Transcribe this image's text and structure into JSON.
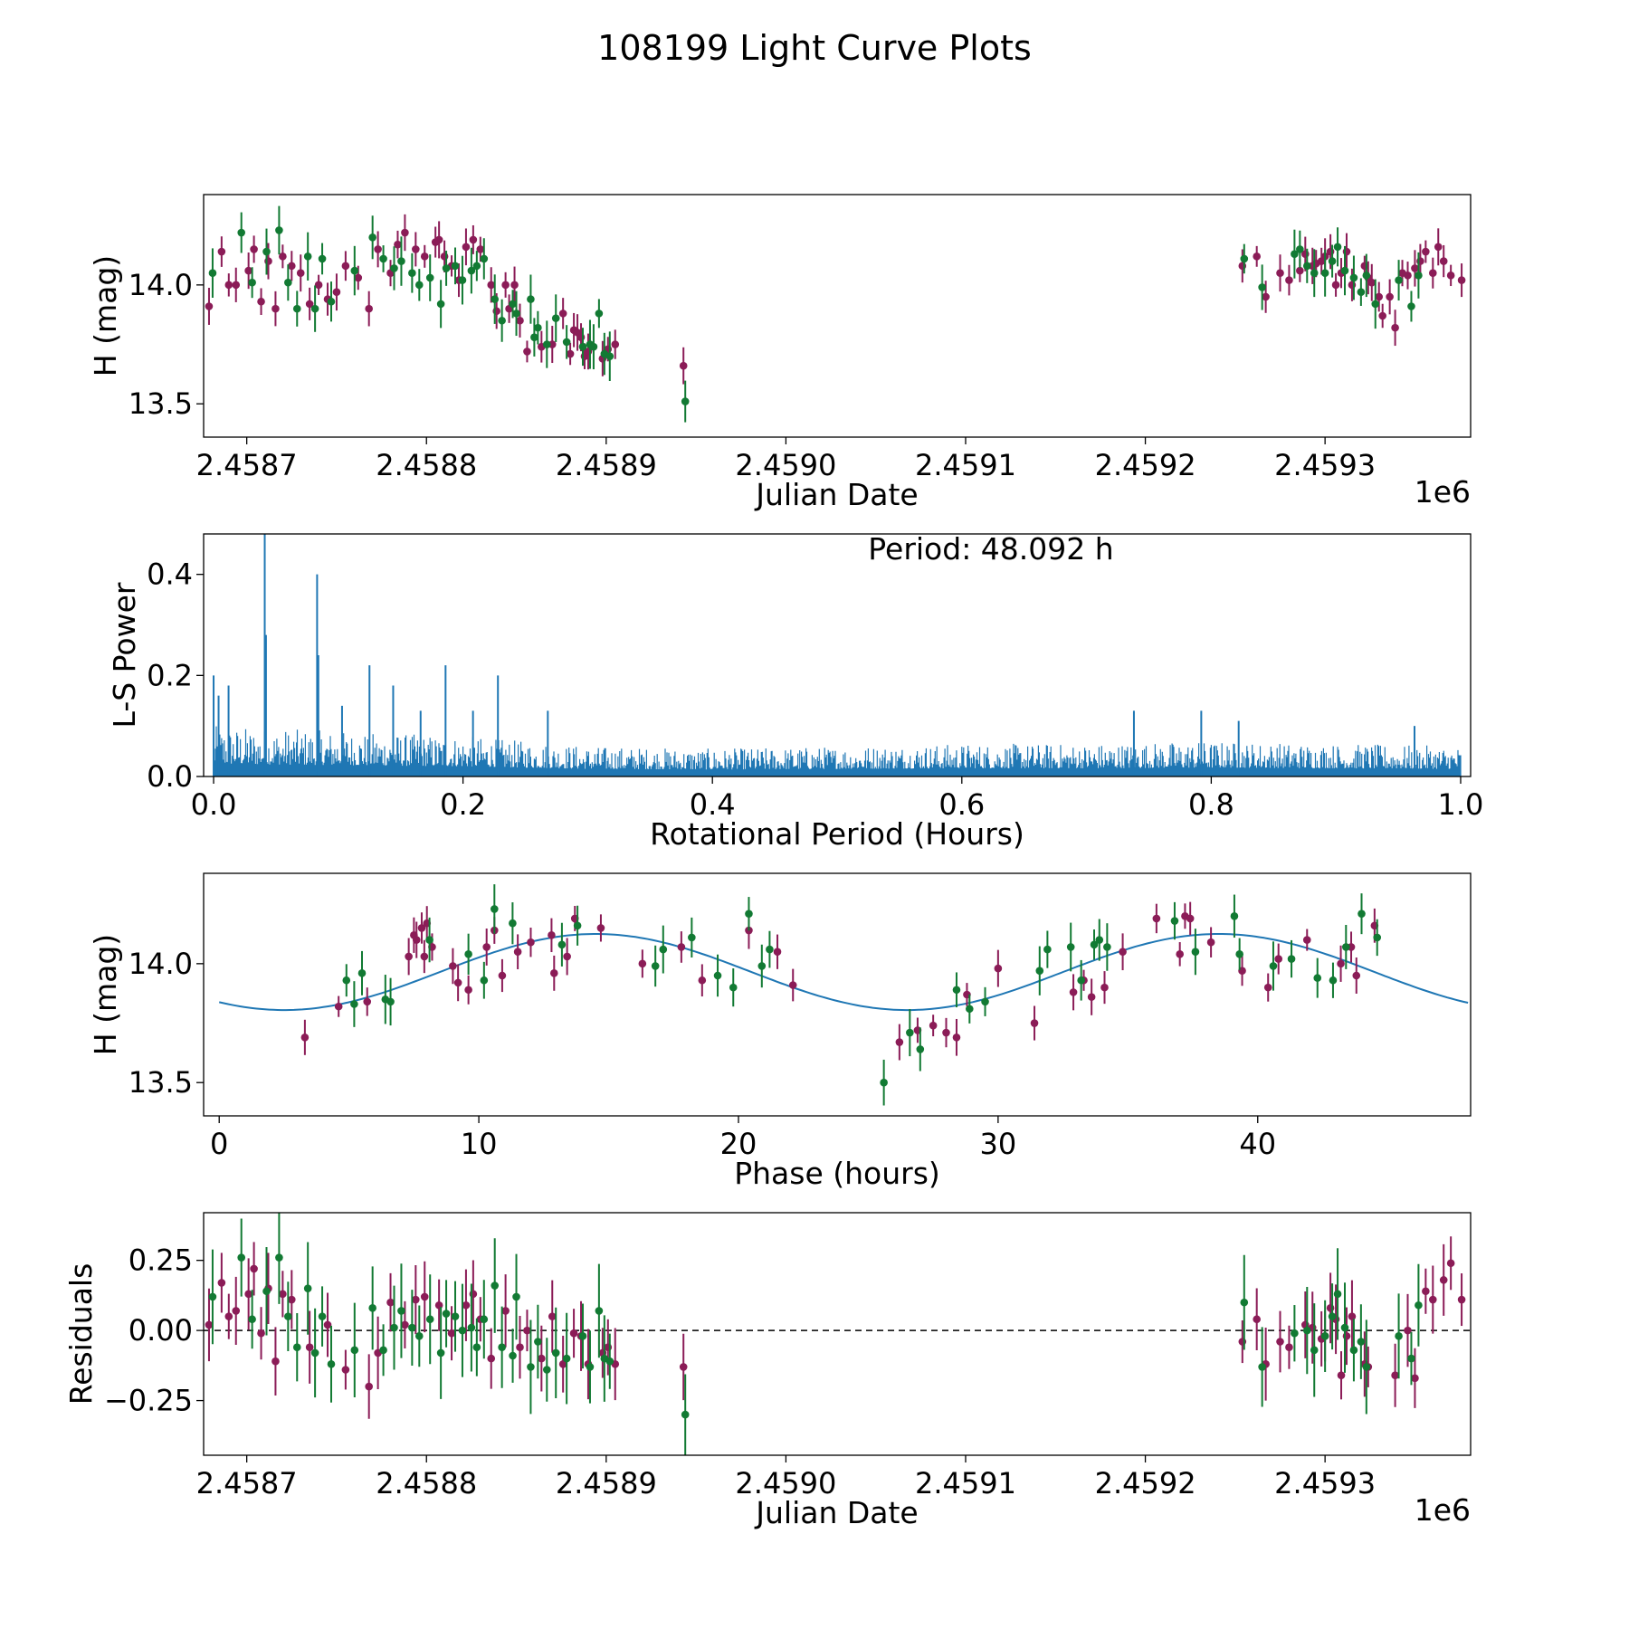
{
  "figure_title": "108199 Light Curve Plots",
  "colors": {
    "purple": "#8b1c57",
    "green": "#127a33",
    "line_blue": "#1f77b4",
    "axes": "#000000"
  },
  "chart_data": [
    {
      "id": "lightcurve",
      "type": "scatter",
      "title": "",
      "xlabel": "Julian Date",
      "ylabel": "H (mag)",
      "x_offset_label": "1e6",
      "xlim": [
        2.458676,
        2.459381
      ],
      "ylim": [
        13.36,
        14.38
      ],
      "xticks": [
        2.4587,
        2.4588,
        2.4589,
        2.459,
        2.4591,
        2.4592,
        2.4593
      ],
      "xtick_labels": [
        "2.4587",
        "2.4588",
        "2.4589",
        "2.4590",
        "2.4591",
        "2.4592",
        "2.4593"
      ],
      "yticks": [
        13.5,
        14.0
      ],
      "ytick_labels": [
        "13.5",
        "14.0"
      ],
      "x_unit_scale": 1000000,
      "series": [
        {
          "name": "purple",
          "color": "#8b1c57",
          "note": "observations, filter 1",
          "y_err": 0.06,
          "x": [
            2.458679,
            2.458686,
            2.45869,
            2.458694,
            2.458701,
            2.458704,
            2.458708,
            2.458712,
            2.458716,
            2.45872,
            2.458725,
            2.45873,
            2.458735,
            2.45874,
            2.458745,
            2.45875,
            2.458755,
            2.458762,
            2.458768,
            2.458773,
            2.45878,
            2.458784,
            2.458788,
            2.458794,
            2.458799,
            2.458805,
            2.458807,
            2.45881,
            2.458814,
            2.458818,
            2.458822,
            2.458826,
            2.45883,
            2.458836,
            2.458839,
            2.458844,
            2.458846,
            2.458849,
            2.458852,
            2.458856,
            2.458864,
            2.45887,
            2.458876,
            2.45888,
            2.458882,
            2.458884,
            2.458886,
            2.458888,
            2.45889,
            2.458898,
            2.458901,
            2.458905,
            2.458943,
            2.459254,
            2.459262,
            2.459267,
            2.459275,
            2.45928,
            2.459286,
            2.459289,
            2.459293,
            2.459295,
            2.459298,
            2.4593,
            2.459303,
            2.459306,
            2.459309,
            2.459312,
            2.459315,
            2.459322,
            2.459324,
            2.459326,
            2.45933,
            2.459332,
            2.459336,
            2.459339,
            2.459343,
            2.459346,
            2.45935,
            2.459353,
            2.459356,
            2.45936,
            2.459363,
            2.459366,
            2.45937,
            2.459376
          ],
          "y": [
            13.91,
            14.14,
            14.0,
            14.0,
            14.06,
            14.15,
            13.93,
            14.1,
            13.9,
            14.12,
            14.08,
            14.05,
            13.92,
            14.0,
            13.94,
            13.97,
            14.08,
            14.03,
            13.9,
            14.15,
            14.05,
            14.17,
            14.22,
            14.15,
            14.12,
            14.18,
            14.19,
            14.12,
            14.08,
            14.02,
            14.16,
            14.19,
            14.15,
            14.0,
            13.89,
            14.0,
            13.9,
            14.0,
            13.85,
            13.72,
            13.74,
            13.75,
            13.88,
            13.71,
            13.81,
            13.8,
            13.78,
            13.7,
            13.72,
            13.69,
            13.73,
            13.75,
            13.66,
            14.08,
            14.12,
            13.95,
            14.05,
            14.02,
            14.06,
            14.13,
            14.08,
            14.09,
            14.1,
            14.12,
            14.14,
            14.0,
            14.05,
            14.14,
            14.0,
            14.08,
            14.03,
            14.01,
            13.95,
            13.87,
            13.95,
            13.82,
            14.05,
            14.04,
            14.07,
            14.1,
            14.14,
            14.05,
            14.16,
            14.1,
            14.04,
            14.02
          ]
        },
        {
          "name": "green",
          "color": "#127a33",
          "note": "observations, filter 2",
          "y_err": 0.08,
          "x": [
            2.458681,
            2.458697,
            2.458703,
            2.458711,
            2.458718,
            2.458723,
            2.458728,
            2.458734,
            2.458738,
            2.458742,
            2.458747,
            2.45876,
            2.45877,
            2.458776,
            2.458782,
            2.458786,
            2.458792,
            2.458796,
            2.458802,
            2.458808,
            2.458811,
            2.458816,
            2.45882,
            2.458825,
            2.458828,
            2.458832,
            2.458838,
            2.458842,
            2.458848,
            2.45885,
            2.458858,
            2.45886,
            2.458862,
            2.458867,
            2.458872,
            2.458878,
            2.458887,
            2.458891,
            2.458893,
            2.458896,
            2.458899,
            2.458902,
            2.458944,
            2.459255,
            2.459265,
            2.459283,
            2.459286,
            2.45929,
            2.459294,
            2.4593,
            2.459304,
            2.459307,
            2.459311,
            2.459316,
            2.45932,
            2.459323,
            2.459328,
            2.459341,
            2.459348,
            2.459352
          ],
          "y": [
            14.05,
            14.22,
            14.01,
            14.14,
            14.23,
            14.01,
            13.9,
            14.12,
            13.9,
            14.11,
            13.93,
            14.06,
            14.2,
            14.11,
            14.07,
            14.1,
            14.05,
            14.0,
            14.03,
            13.92,
            14.07,
            14.08,
            14.02,
            14.06,
            14.08,
            14.11,
            13.94,
            13.85,
            13.92,
            13.88,
            13.94,
            13.78,
            13.82,
            13.75,
            13.86,
            13.76,
            13.74,
            13.75,
            13.74,
            13.88,
            13.71,
            13.7,
            13.51,
            14.11,
            13.99,
            14.13,
            14.15,
            14.08,
            14.05,
            14.05,
            14.1,
            14.16,
            14.06,
            14.03,
            13.97,
            14.04,
            13.92,
            14.02,
            13.91,
            14.04
          ]
        }
      ]
    },
    {
      "id": "periodogram",
      "type": "line",
      "title": "",
      "xlabel": "Rotational Period (Hours)",
      "ylabel": "L-S Power",
      "annotation": "Period: 48.092 h",
      "xlim": [
        -0.008,
        1.008
      ],
      "ylim": [
        0.0,
        0.48
      ],
      "xticks": [
        0.0,
        0.2,
        0.4,
        0.6,
        0.8,
        1.0
      ],
      "xtick_labels": [
        "0.0",
        "0.2",
        "0.4",
        "0.6",
        "0.8",
        "1.0"
      ],
      "yticks": [
        0.0,
        0.2,
        0.4
      ],
      "ytick_labels": [
        "0.0",
        "0.2",
        "0.4"
      ],
      "color": "#1f77b4",
      "noise_envelope": {
        "x": [
          0.0,
          0.1,
          0.2,
          0.3,
          0.4,
          0.5,
          0.6,
          0.7,
          0.8,
          0.9,
          1.0
        ],
        "max_power": [
          0.1,
          0.09,
          0.08,
          0.06,
          0.055,
          0.06,
          0.065,
          0.065,
          0.07,
          0.065,
          0.06
        ]
      },
      "peaks": {
        "x": [
          0.0,
          0.004,
          0.012,
          0.041,
          0.042,
          0.083,
          0.084,
          0.103,
          0.125,
          0.144,
          0.166,
          0.186,
          0.208,
          0.228,
          0.268,
          0.738,
          0.792,
          0.822,
          0.963
        ],
        "power": [
          0.2,
          0.16,
          0.18,
          0.48,
          0.28,
          0.4,
          0.24,
          0.14,
          0.22,
          0.18,
          0.13,
          0.22,
          0.13,
          0.2,
          0.13,
          0.13,
          0.13,
          0.11,
          0.1
        ]
      }
    },
    {
      "id": "phase",
      "type": "scatter",
      "title": "",
      "xlabel": "Phase (hours)",
      "ylabel": "H (mag)",
      "xlim": [
        -0.6,
        48.2
      ],
      "ylim": [
        13.36,
        14.38
      ],
      "xticks": [
        0,
        10,
        20,
        30,
        40
      ],
      "xtick_labels": [
        "0",
        "10",
        "20",
        "30",
        "40"
      ],
      "yticks": [
        13.5,
        14.0
      ],
      "ytick_labels": [
        "13.5",
        "14.0"
      ],
      "model": {
        "name": "fit",
        "color": "#1f77b4",
        "mean": 13.965,
        "amplitude": 0.16,
        "period": 24.0,
        "peak_phase": 14.5,
        "x_range": [
          0,
          48.1
        ]
      },
      "series": [
        {
          "name": "purple",
          "color": "#8b1c57",
          "y_err": 0.06,
          "x": [
            3.3,
            4.6,
            5.7,
            7.3,
            7.5,
            7.6,
            7.8,
            7.9,
            8.0,
            8.2,
            9.0,
            9.2,
            9.6,
            10.3,
            10.6,
            10.9,
            11.5,
            12.0,
            12.8,
            12.9,
            13.4,
            13.7,
            14.7,
            16.3,
            17.8,
            18.6,
            20.4,
            21.5,
            22.1,
            26.2,
            26.9,
            27.5,
            28.0,
            28.4,
            28.8,
            30.0,
            31.4,
            32.9,
            33.3,
            33.6,
            34.1,
            34.8,
            36.1,
            37.0,
            37.2,
            37.4,
            38.2,
            39.4,
            40.4,
            40.8,
            41.9,
            43.2,
            43.6,
            43.8,
            44.5
          ],
          "y": [
            13.69,
            13.82,
            13.84,
            14.03,
            14.12,
            14.1,
            14.15,
            14.03,
            14.17,
            14.07,
            13.99,
            13.92,
            13.89,
            14.07,
            14.14,
            13.95,
            14.05,
            14.09,
            14.12,
            13.96,
            14.03,
            14.19,
            14.15,
            14.0,
            14.07,
            13.93,
            14.14,
            14.05,
            13.91,
            13.67,
            13.72,
            13.74,
            13.71,
            13.69,
            13.87,
            13.98,
            13.75,
            13.88,
            13.93,
            13.86,
            13.9,
            14.05,
            14.19,
            14.04,
            14.2,
            14.19,
            14.09,
            13.97,
            13.9,
            14.02,
            14.1,
            14.0,
            14.07,
            13.95,
            14.16
          ]
        },
        {
          "name": "green",
          "color": "#127a33",
          "y_err": 0.08,
          "x": [
            4.9,
            5.2,
            5.5,
            6.4,
            6.6,
            8.1,
            9.6,
            10.2,
            10.6,
            11.3,
            13.2,
            13.8,
            16.8,
            17.1,
            18.2,
            19.2,
            19.8,
            20.4,
            20.9,
            21.2,
            25.6,
            26.6,
            27.0,
            28.4,
            28.9,
            29.5,
            31.6,
            31.9,
            32.8,
            33.2,
            33.7,
            33.9,
            34.2,
            36.8,
            37.6,
            39.1,
            39.3,
            40.6,
            41.3,
            42.3,
            42.9,
            43.4,
            44.0,
            44.6
          ],
          "y": [
            13.93,
            13.83,
            13.96,
            13.85,
            13.84,
            14.1,
            14.04,
            13.93,
            14.23,
            14.17,
            14.08,
            14.16,
            13.99,
            14.06,
            14.11,
            13.95,
            13.9,
            14.21,
            13.99,
            14.06,
            13.5,
            13.71,
            13.64,
            13.89,
            13.81,
            13.84,
            13.97,
            14.06,
            14.07,
            13.93,
            14.08,
            14.1,
            14.07,
            14.18,
            14.05,
            14.2,
            14.04,
            13.99,
            14.02,
            13.94,
            13.93,
            14.07,
            14.21,
            14.11
          ]
        }
      ]
    },
    {
      "id": "residuals",
      "type": "scatter",
      "title": "",
      "xlabel": "Julian Date",
      "ylabel": "Residuals",
      "x_offset_label": "1e6",
      "xlim": [
        2.458676,
        2.459381
      ],
      "ylim": [
        -0.445,
        0.42
      ],
      "xticks": [
        2.4587,
        2.4588,
        2.4589,
        2.459,
        2.4591,
        2.4592,
        2.4593
      ],
      "xtick_labels": [
        "2.4587",
        "2.4588",
        "2.4589",
        "2.4590",
        "2.4591",
        "2.4592",
        "2.4593"
      ],
      "yticks": [
        -0.25,
        0.0,
        0.25
      ],
      "ytick_labels": [
        "−0.25",
        "0.00",
        "0.25"
      ],
      "x_unit_scale": 1000000,
      "reference_line": {
        "y": 0.0,
        "style": "dashed",
        "color": "#000000"
      },
      "series": [
        {
          "name": "purple",
          "color": "#8b1c57",
          "y_err": 0.1,
          "x": [
            2.458679,
            2.458686,
            2.45869,
            2.458694,
            2.458701,
            2.458704,
            2.458708,
            2.458712,
            2.458716,
            2.45872,
            2.458725,
            2.458735,
            2.458745,
            2.458755,
            2.458768,
            2.458773,
            2.45878,
            2.458788,
            2.458794,
            2.458799,
            2.458807,
            2.458814,
            2.458822,
            2.458826,
            2.45883,
            2.458836,
            2.458844,
            2.458852,
            2.458856,
            2.458864,
            2.45887,
            2.458876,
            2.458882,
            2.458886,
            2.45889,
            2.458898,
            2.458901,
            2.458905,
            2.458943,
            2.459254,
            2.459262,
            2.459267,
            2.459275,
            2.45928,
            2.459289,
            2.459293,
            2.459298,
            2.4593,
            2.459303,
            2.459306,
            2.459309,
            2.459312,
            2.459315,
            2.459322,
            2.459324,
            2.459339,
            2.459346,
            2.45935,
            2.459356,
            2.45936,
            2.459366,
            2.45937,
            2.459376
          ],
          "y": [
            0.02,
            0.17,
            0.05,
            0.07,
            0.13,
            0.22,
            -0.01,
            0.15,
            -0.11,
            0.13,
            0.11,
            -0.06,
            0.02,
            -0.14,
            -0.2,
            -0.08,
            0.1,
            0.02,
            0.11,
            0.12,
            0.09,
            -0.01,
            0.09,
            0.13,
            0.04,
            -0.1,
            0.07,
            -0.06,
            0.0,
            -0.1,
            0.05,
            -0.12,
            -0.01,
            -0.02,
            -0.12,
            -0.08,
            -0.06,
            -0.12,
            -0.13,
            -0.04,
            0.04,
            -0.12,
            -0.04,
            -0.06,
            0.02,
            0.01,
            -0.03,
            -0.02,
            0.08,
            0.04,
            -0.16,
            -0.02,
            0.05,
            -0.12,
            -0.13,
            -0.16,
            0.0,
            -0.17,
            0.14,
            0.11,
            0.18,
            0.24,
            0.11
          ]
        },
        {
          "name": "green",
          "color": "#127a33",
          "y_err": 0.13,
          "x": [
            2.458681,
            2.458697,
            2.458703,
            2.458711,
            2.458718,
            2.458723,
            2.458728,
            2.458734,
            2.458738,
            2.458742,
            2.458747,
            2.45876,
            2.45877,
            2.458776,
            2.458782,
            2.458786,
            2.458792,
            2.458796,
            2.458802,
            2.458808,
            2.458811,
            2.458816,
            2.45882,
            2.458825,
            2.458828,
            2.458832,
            2.458838,
            2.458842,
            2.458848,
            2.45885,
            2.458858,
            2.458862,
            2.458867,
            2.458872,
            2.458878,
            2.458887,
            2.458891,
            2.458896,
            2.458899,
            2.458902,
            2.458944,
            2.459255,
            2.459265,
            2.459283,
            2.45929,
            2.459294,
            2.4593,
            2.459304,
            2.459307,
            2.459311,
            2.459316,
            2.45932,
            2.459323,
            2.459341,
            2.459348,
            2.459352
          ],
          "y": [
            0.12,
            0.26,
            0.04,
            0.14,
            0.26,
            0.05,
            -0.06,
            0.15,
            -0.08,
            0.05,
            -0.12,
            -0.07,
            0.08,
            -0.07,
            0.01,
            0.07,
            0.01,
            -0.02,
            0.04,
            -0.08,
            0.06,
            0.05,
            0.0,
            0.01,
            -0.06,
            0.04,
            0.16,
            -0.06,
            -0.09,
            0.12,
            -0.13,
            -0.04,
            -0.14,
            -0.08,
            -0.1,
            -0.02,
            -0.13,
            0.07,
            -0.1,
            -0.11,
            -0.3,
            0.1,
            -0.13,
            -0.01,
            0.0,
            -0.07,
            -0.02,
            0.05,
            0.13,
            0.01,
            -0.07,
            -0.04,
            -0.13,
            -0.02,
            -0.1,
            0.09
          ]
        }
      ]
    }
  ]
}
